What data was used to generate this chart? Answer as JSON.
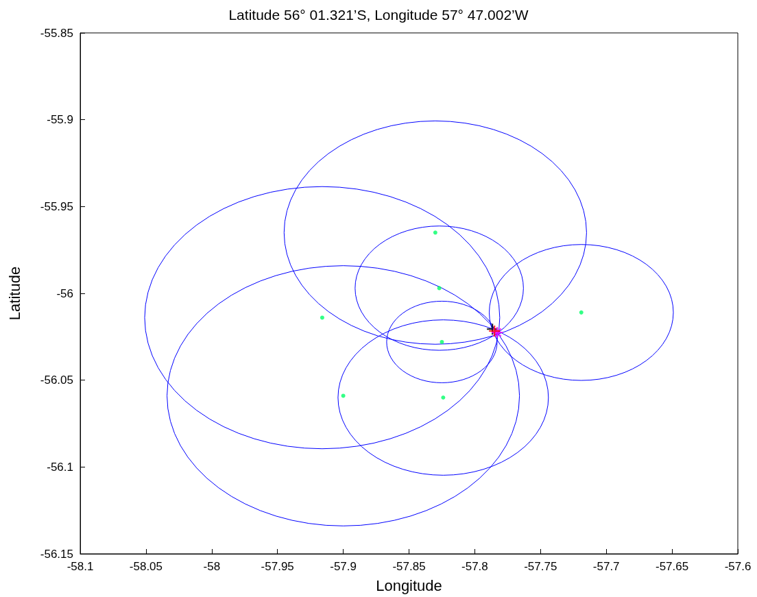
{
  "chart_data": {
    "type": "scatter",
    "title": "Latitude 56° 01.321’S, Longitude 57° 47.002’W",
    "xlabel": "Longitude",
    "ylabel": "Latitude",
    "xlim": [
      -58.1,
      -57.6
    ],
    "xticks": [
      -58.1,
      -58.05,
      -58,
      -57.95,
      -57.9,
      -57.85,
      -57.8,
      -57.75,
      -57.7,
      -57.65,
      -57.6
    ],
    "ylim": [
      -56.15,
      -55.85
    ],
    "yticks": [
      -56.15,
      -56.1,
      -56.05,
      -56,
      -55.95,
      -55.9,
      -55.85
    ],
    "grid": false,
    "series": [
      {
        "type": "scatter",
        "color": "#00ff66",
        "marker": "circle",
        "x": [
          -57.83,
          -57.827,
          -57.916,
          -57.719,
          -57.825,
          -57.9,
          -57.824
        ],
        "values": [
          -55.965,
          -55.997,
          -56.014,
          -56.011,
          -56.028,
          -56.059,
          -56.06
        ]
      },
      {
        "type": "scatter",
        "color": "#000000",
        "marker": "cross",
        "x": [
          -57.7866
        ],
        "values": [
          -56.0206
        ]
      },
      {
        "type": "scatter",
        "color": "#ff00ff",
        "marker": "star",
        "x": [
          -57.783
        ],
        "values": [
          -56.0225
        ]
      },
      {
        "type": "scatter",
        "color": "#ff0000",
        "marker": "cross",
        "x": [
          -57.785
        ],
        "values": [
          -56.0217
        ]
      }
    ]
  }
}
